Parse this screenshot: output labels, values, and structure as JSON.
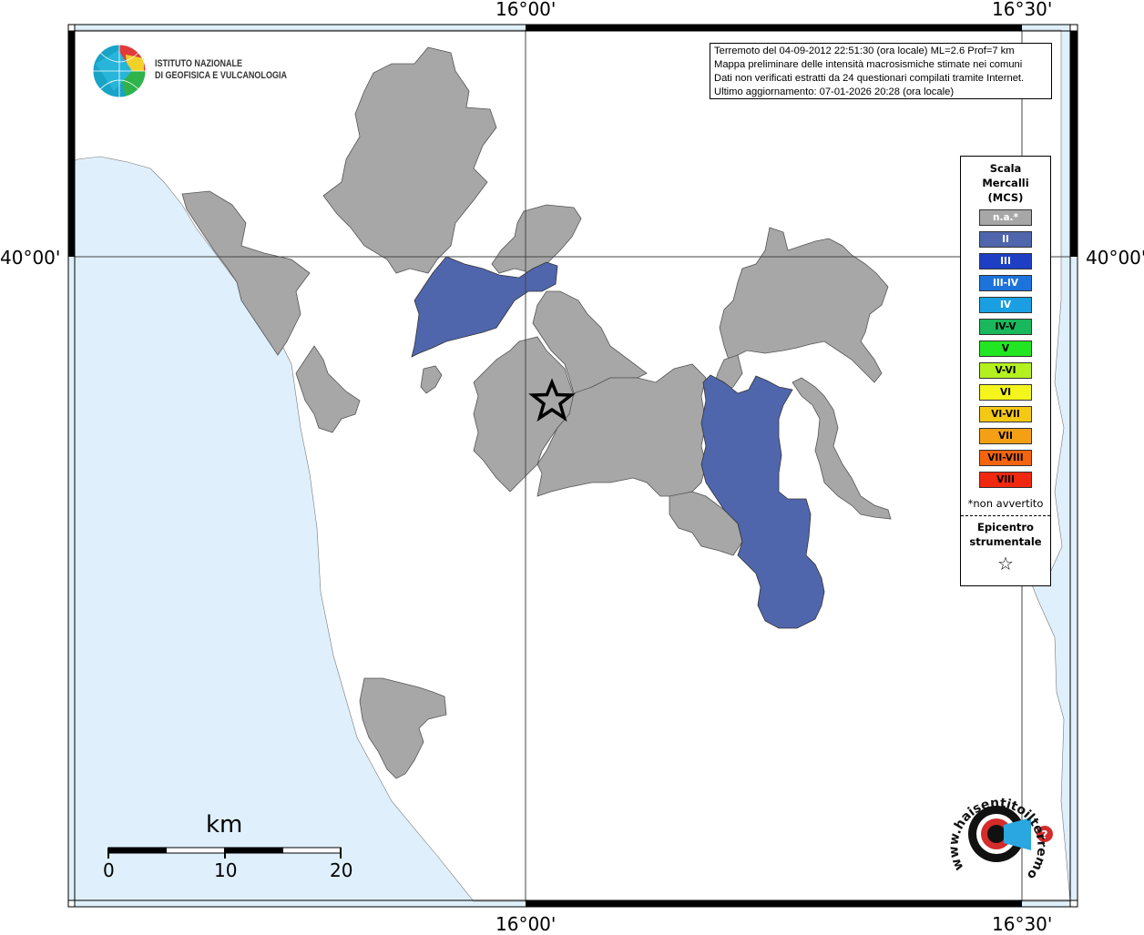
{
  "map": {
    "coords": {
      "top": [
        "16°00'",
        "16°30'"
      ],
      "bottom": [
        "16°00'",
        "16°30'"
      ],
      "left": "40°00'",
      "right": "40°00'"
    },
    "colors": {
      "sea": "#dff0fc",
      "land": "#ffffff",
      "na_municipality": "#a7a7a7",
      "intensity_II": "#5066ac"
    },
    "epicenter_icon": "star-outline-icon"
  },
  "logos": {
    "ingv": {
      "line1": "ISTITUTO NAZIONALE",
      "line2": "DI GEOFISICA E VULCANOLOGIA",
      "icon": "globe-icon"
    },
    "hsit": {
      "text": "www.haisentitoilterremoto.it",
      "icon": "loudspeaker-icon"
    }
  },
  "info": {
    "line1": "Terremoto del 04-09-2012 22:51:30 (ora locale) ML=2.6 Prof=7 km",
    "line2": "Mappa preliminare delle intensità macrosismiche stimate nei comuni",
    "line3": "Dati non verificati estratti da 24 questionari compilati tramite Internet.",
    "line4": "Ultimo aggiornamento: 07-01-2026 20:28 (ora locale)"
  },
  "legend": {
    "title": [
      "Scala",
      "Mercalli",
      "(MCS)"
    ],
    "items": [
      {
        "label": "n.a.*",
        "color": "#a7a7a7",
        "text_color": "#ffffff"
      },
      {
        "label": "II",
        "color": "#5066ac",
        "text_color": "#ffffff"
      },
      {
        "label": "III",
        "color": "#1e3fc4",
        "text_color": "#ffffff"
      },
      {
        "label": "III-IV",
        "color": "#1c73dc",
        "text_color": "#ffffff"
      },
      {
        "label": "IV",
        "color": "#1aa0e2",
        "text_color": "#ffffff"
      },
      {
        "label": "IV-V",
        "color": "#1ab85c",
        "text_color": "#000000"
      },
      {
        "label": "V",
        "color": "#22e622",
        "text_color": "#000000"
      },
      {
        "label": "V-VI",
        "color": "#b4f01e",
        "text_color": "#000000"
      },
      {
        "label": "VI",
        "color": "#f5f51e",
        "text_color": "#000000"
      },
      {
        "label": "VI-VII",
        "color": "#f5c814",
        "text_color": "#000000"
      },
      {
        "label": "VII",
        "color": "#f5a014",
        "text_color": "#000000"
      },
      {
        "label": "VII-VIII",
        "color": "#f5640f",
        "text_color": "#000000"
      },
      {
        "label": "VIII",
        "color": "#f0280f",
        "text_color": "#000000"
      }
    ],
    "note": "*non avvertito",
    "epicenter_label": [
      "Epicentro",
      "strumentale"
    ],
    "epicenter_symbol": "☆"
  },
  "scalebar": {
    "unit": "km",
    "ticks": [
      "0",
      "10",
      "20"
    ]
  }
}
